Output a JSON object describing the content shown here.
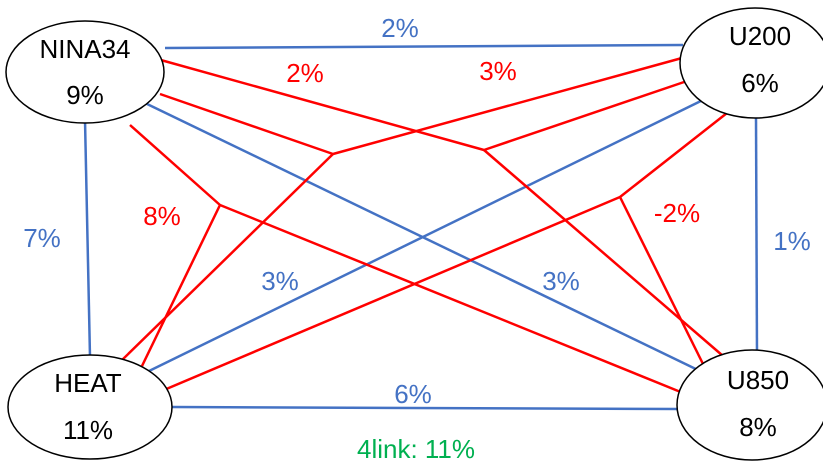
{
  "colors": {
    "pair_link": "#4472C4",
    "triple_link": "#FF0000",
    "total": "#00B050"
  },
  "nodes": {
    "nina34": {
      "name": "NINA34",
      "value": "9%"
    },
    "u200": {
      "name": "U200",
      "value": "6%"
    },
    "heat": {
      "name": "HEAT",
      "value": "11%"
    },
    "u850": {
      "name": "U850",
      "value": "8%"
    }
  },
  "pair_links": {
    "nina34_u200": "2%",
    "nina34_heat": "7%",
    "u200_u850": "1%",
    "heat_u850": "6%",
    "heat_u200": "3%",
    "nina34_u850": "3%"
  },
  "triple_links": {
    "t1": "2%",
    "t2": "3%",
    "t3": "8%",
    "t4": "-2%"
  },
  "four_link": {
    "text": "4link: 11%"
  }
}
